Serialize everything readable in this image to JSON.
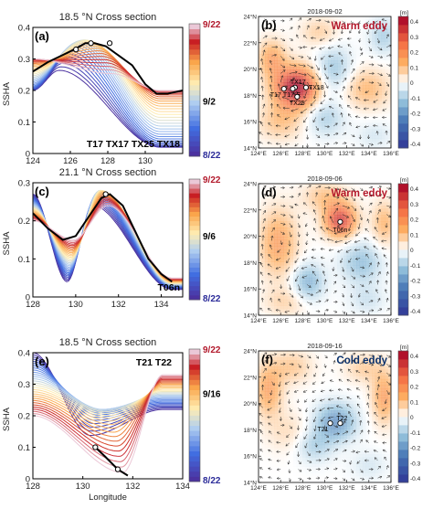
{
  "figure": {
    "ylabel": "SSHA",
    "xlabel": "Longitude"
  },
  "colorbar_ticks": [
    "0.4",
    "0.3",
    "0.2",
    "0.1",
    "0",
    "-0.1",
    "-0.2",
    "-0.3",
    "-0.4"
  ],
  "colorbar_unit": "[m]",
  "map_lat_ticks": [
    "24°N",
    "22°N",
    "20°N",
    "18°N",
    "16°N",
    "14°N"
  ],
  "map_lon_ticks": [
    "124°E",
    "126°E",
    "128°E",
    "130°E",
    "132°E",
    "134°E",
    "136°E"
  ],
  "colors": {
    "warm_label": "#b2182b",
    "cold_label": "#08306b",
    "date_top": "#b2182b",
    "date_bottom": "#2b2b99"
  },
  "chart_data": [
    {
      "type": "line",
      "panel": "(a)",
      "title": "18.5 °N  Cross section",
      "xlim": [
        124,
        132
      ],
      "ylim": [
        0,
        0.4
      ],
      "xticks": [
        "124",
        "126",
        "128",
        "130"
      ],
      "yticks": [
        "0",
        "0.1",
        "0.2",
        "0.3",
        "0.4"
      ],
      "colorbar_labels": [
        "9/22",
        "9/2",
        "8/22"
      ],
      "annotation": "T17  TX17  TX25  TX18",
      "ridge_black_line": {
        "x": [
          124.0,
          124.8,
          125.5,
          126.2,
          126.8,
          127.3,
          127.9,
          128.6,
          129.3,
          130.0,
          130.6,
          131.2,
          132.0
        ],
        "y": [
          0.26,
          0.29,
          0.31,
          0.33,
          0.35,
          0.35,
          0.34,
          0.31,
          0.28,
          0.22,
          0.19,
          0.19,
          0.2
        ]
      },
      "profile_range": {
        "west_min": 0.2,
        "peak_max": 0.38,
        "east_min": 0.02
      },
      "markers": [
        {
          "x": 126.3,
          "y": 0.33
        },
        {
          "x": 127.1,
          "y": 0.35
        },
        {
          "x": 128.1,
          "y": 0.35
        }
      ]
    },
    {
      "type": "line",
      "panel": "(c)",
      "title": "21.1 °N  Cross section",
      "xlim": [
        128,
        135
      ],
      "ylim": [
        0,
        0.3
      ],
      "xticks": [
        "128",
        "130",
        "132",
        "134"
      ],
      "yticks": [
        "0",
        "0.1",
        "0.2",
        "0.3"
      ],
      "colorbar_labels": [
        "9/22",
        "9/6",
        "8/22"
      ],
      "annotation": "T06n",
      "ridge_black_line": {
        "x": [
          128.0,
          128.7,
          129.4,
          130.0,
          130.6,
          131.2,
          131.6,
          132.2,
          132.8,
          133.4,
          134.0,
          134.5
        ],
        "y": [
          0.22,
          0.18,
          0.15,
          0.16,
          0.21,
          0.26,
          0.27,
          0.24,
          0.17,
          0.1,
          0.06,
          0.04
        ]
      },
      "markers": [
        {
          "x": 131.4,
          "y": 0.27
        }
      ]
    },
    {
      "type": "line",
      "panel": "(e)",
      "title": "18.5 °N  Cross section",
      "xlim": [
        128,
        134
      ],
      "ylim": [
        0,
        0.4
      ],
      "xticks": [
        "128",
        "130",
        "132",
        "134"
      ],
      "yticks": [
        "0",
        "0.1",
        "0.2",
        "0.3",
        "0.4"
      ],
      "xlabel": "Longitude",
      "colorbar_labels": [
        "9/22",
        "9/16",
        "8/22"
      ],
      "annotation": "T21  T22",
      "ridge_black_line": {
        "x": [
          130.5,
          130.9,
          131.4,
          131.8
        ],
        "y": [
          0.1,
          0.07,
          0.03,
          0.01
        ]
      },
      "markers": [
        {
          "x": 130.5,
          "y": 0.1
        },
        {
          "x": 131.4,
          "y": 0.03
        }
      ]
    }
  ],
  "maps": [
    {
      "panel": "(b)",
      "date": "2018-09-02",
      "label": "Warm eddy",
      "stations": [
        {
          "name": "TX17",
          "lon": 127.3,
          "lat": 18.6
        },
        {
          "name": "T17",
          "lon": 126.3,
          "lat": 18.5
        },
        {
          "name": "T17-E",
          "lon": 127.1,
          "lat": 18.5
        },
        {
          "name": "TX18",
          "lon": 128.3,
          "lat": 18.6
        },
        {
          "name": "TX25",
          "lon": 127.5,
          "lat": 17.9
        }
      ]
    },
    {
      "panel": "(d)",
      "date": "2018-09-06",
      "label": "Warm eddy",
      "stations": [
        {
          "name": "T06n",
          "lon": 131.4,
          "lat": 21.1
        }
      ]
    },
    {
      "panel": "(f)",
      "date": "2018-09-16",
      "label": "Cold eddy",
      "stations": [
        {
          "name": "T22",
          "lon": 131.4,
          "lat": 18.5
        },
        {
          "name": "T21",
          "lon": 130.5,
          "lat": 18.5
        }
      ]
    }
  ]
}
